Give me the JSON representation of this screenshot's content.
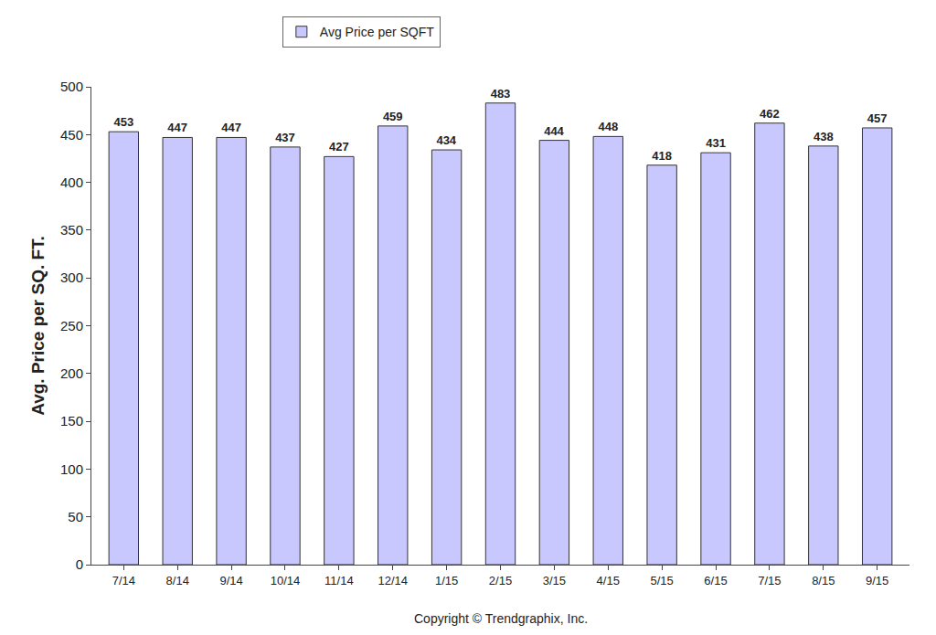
{
  "chart_data": {
    "type": "bar",
    "y_label": "Avg. Price per SQ. FT.",
    "source": "Copyright © Trendgraphix, Inc.",
    "categories": [
      "7/14",
      "8/14",
      "9/14",
      "10/14",
      "11/14",
      "12/14",
      "1/15",
      "2/15",
      "3/15",
      "4/15",
      "5/15",
      "6/15",
      "7/15",
      "8/15",
      "9/15"
    ],
    "series": [
      {
        "name": "Avg Price per SQFT",
        "color": "#c8c8ff",
        "values": [
          453,
          447,
          447,
          437,
          427,
          459,
          434,
          483,
          444,
          448,
          418,
          431,
          462,
          438,
          457
        ]
      }
    ],
    "ylim": [
      0,
      500
    ],
    "yticks": [
      0,
      50,
      100,
      150,
      200,
      250,
      300,
      350,
      400,
      450,
      500
    ],
    "grid": false,
    "legend": "top",
    "data_labels": true
  }
}
